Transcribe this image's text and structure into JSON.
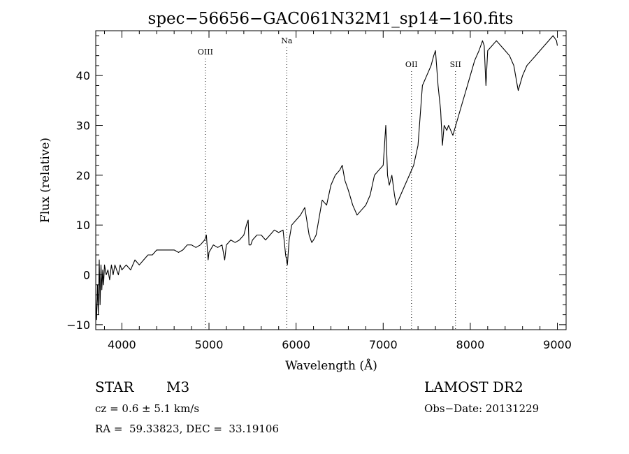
{
  "chart_data": {
    "type": "line",
    "title": "spec−56656−GAC061N32M1_sp14−160.fits",
    "xlabel": "Wavelength (Å)",
    "ylabel": "Flux (relative)",
    "xlim": [
      3700,
      9100
    ],
    "ylim": [
      -11,
      49
    ],
    "xticks": [
      4000,
      5000,
      6000,
      7000,
      8000,
      9000
    ],
    "yticks": [
      -10,
      0,
      10,
      20,
      30,
      40
    ],
    "ytick_labels": [
      "−10",
      "0",
      "10",
      "20",
      "30",
      "40"
    ],
    "grid": false,
    "lines": [
      {
        "label": "OIII",
        "x": 4959
      },
      {
        "label": "Na",
        "x": 5893
      },
      {
        "label": "OII",
        "x": 7325
      },
      {
        "label": "SII",
        "x": 7830
      }
    ],
    "series": [
      {
        "x": [
          3700,
          3710,
          3720,
          3730,
          3740,
          3750,
          3760,
          3770,
          3780,
          3790,
          3800,
          3820,
          3840,
          3860,
          3880,
          3900,
          3920,
          3940,
          3960,
          3980,
          4000,
          4050,
          4100,
          4150,
          4200,
          4250,
          4300,
          4350,
          4400,
          4450,
          4500,
          4550,
          4600,
          4650,
          4700,
          4750,
          4800,
          4850,
          4900,
          4950,
          4970,
          4990,
          5000,
          5050,
          5100,
          5150,
          5180,
          5200,
          5250,
          5300,
          5350,
          5400,
          5430,
          5450,
          5460,
          5480,
          5500,
          5550,
          5600,
          5650,
          5700,
          5750,
          5800,
          5850,
          5880,
          5900,
          5920,
          5950,
          6000,
          6050,
          6100,
          6150,
          6180,
          6200,
          6230,
          6250,
          6300,
          6350,
          6400,
          6450,
          6500,
          6530,
          6560,
          6600,
          6650,
          6700,
          6750,
          6800,
          6850,
          6900,
          6950,
          7000,
          7030,
          7050,
          7070,
          7100,
          7130,
          7150,
          7200,
          7250,
          7300,
          7350,
          7400,
          7450,
          7500,
          7550,
          7580,
          7600,
          7630,
          7660,
          7680,
          7700,
          7730,
          7750,
          7800,
          7850,
          7900,
          7950,
          8000,
          8050,
          8100,
          8140,
          8160,
          8180,
          8200,
          8250,
          8300,
          8350,
          8400,
          8450,
          8500,
          8540,
          8550,
          8600,
          8650,
          8700,
          8750,
          8800,
          8850,
          8900,
          8950,
          8990,
          9000
        ],
        "y": [
          -5,
          -9,
          -2,
          -8,
          3,
          -6,
          2,
          -3,
          1,
          -2,
          2,
          0,
          1,
          -1,
          2,
          0,
          2,
          1,
          0,
          2,
          1,
          2,
          1,
          3,
          2,
          3,
          4,
          4,
          5,
          5,
          5,
          5,
          5,
          4.5,
          5,
          6,
          6,
          5.5,
          6,
          7,
          8,
          3,
          4.5,
          6,
          5.5,
          6,
          3,
          6,
          7,
          6.5,
          7,
          8,
          10,
          11,
          6,
          6,
          7,
          8,
          8,
          7,
          8,
          9,
          8.5,
          9,
          4,
          2,
          7,
          10,
          11,
          12,
          13.5,
          8,
          6.5,
          7,
          8,
          10,
          15,
          14,
          18,
          20,
          21,
          22,
          19,
          17,
          14,
          12,
          13,
          14,
          16,
          20,
          21,
          22,
          30,
          20,
          18,
          20,
          16,
          14,
          16,
          18,
          20,
          22,
          26,
          38,
          40,
          42,
          44,
          45,
          38,
          33,
          26,
          30,
          29,
          30,
          28,
          31,
          34,
          37,
          40,
          43,
          45,
          47,
          46,
          38,
          45,
          46,
          47,
          46,
          45,
          44,
          42,
          38,
          37,
          40,
          42,
          43,
          44,
          45,
          46,
          47,
          48,
          47,
          46
        ]
      }
    ]
  },
  "info": {
    "object_class": "STAR",
    "subclass": "M3",
    "survey": "LAMOST DR2",
    "cz_text": "cz = 0.6 ± 5.1 km/s",
    "obs_date": "Obs−Date: 20131229",
    "coords": "RA =  59.33823, DEC =  33.19106"
  }
}
